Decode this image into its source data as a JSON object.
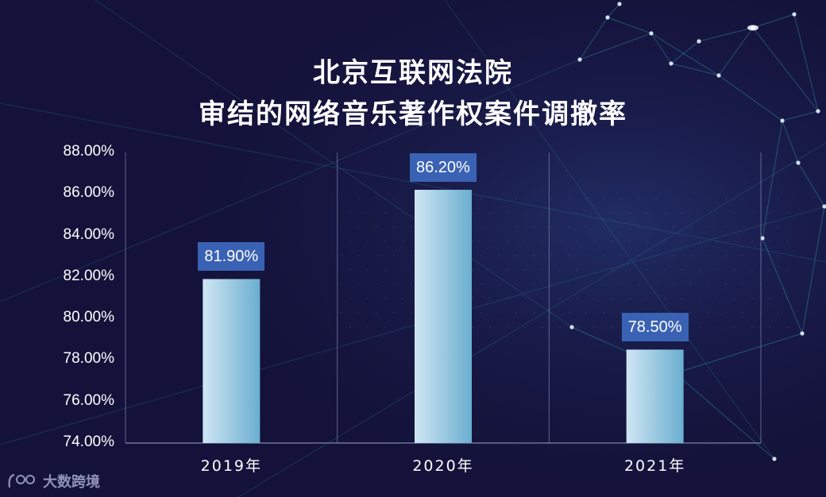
{
  "chart_data": {
    "type": "bar",
    "title_lines": [
      "北京互联网法院",
      "审结的网络音乐著作权案件调撤率"
    ],
    "categories": [
      "2019年",
      "2020年",
      "2021年"
    ],
    "values": [
      81.9,
      86.2,
      78.5
    ],
    "data_labels": [
      "81.90%",
      "86.20%",
      "78.50%"
    ],
    "ylim": [
      74,
      88
    ],
    "yticks": [
      "74.00%",
      "76.00%",
      "78.00%",
      "80.00%",
      "82.00%",
      "84.00%",
      "86.00%",
      "88.00%"
    ],
    "grid": "vertical separators between categories",
    "legend": "none",
    "colors": {
      "background": "#14123a",
      "bar_light": "#cfe6f3",
      "bar_dark": "#6aaed0",
      "label_bg": "#3a62b4",
      "axis": "#7f86a8"
    }
  },
  "watermark": {
    "text": "大数跨境",
    "icon": "brand-logo-icon"
  }
}
